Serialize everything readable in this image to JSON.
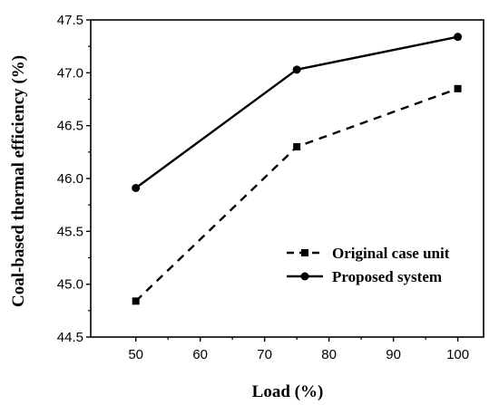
{
  "chart_data": {
    "type": "line",
    "title": "",
    "xlabel": "Load (%)",
    "ylabel": "Coal-based thermal efficiency (%)",
    "xlim": [
      43,
      104
    ],
    "ylim": [
      44.5,
      47.5
    ],
    "xticks": [
      50,
      60,
      70,
      80,
      90,
      100
    ],
    "yticks": [
      44.5,
      45.0,
      45.5,
      46.0,
      46.5,
      47.0,
      47.5
    ],
    "x": [
      50,
      75,
      100
    ],
    "legend_position": "center-right",
    "grid": false,
    "series": [
      {
        "name": "Original case unit",
        "values": [
          44.84,
          46.3,
          46.85
        ],
        "line_style": "dashed",
        "marker": "square",
        "color": "#000000"
      },
      {
        "name": "Proposed system",
        "values": [
          45.91,
          47.03,
          47.34
        ],
        "line_style": "solid",
        "marker": "circle",
        "color": "#000000"
      }
    ]
  }
}
